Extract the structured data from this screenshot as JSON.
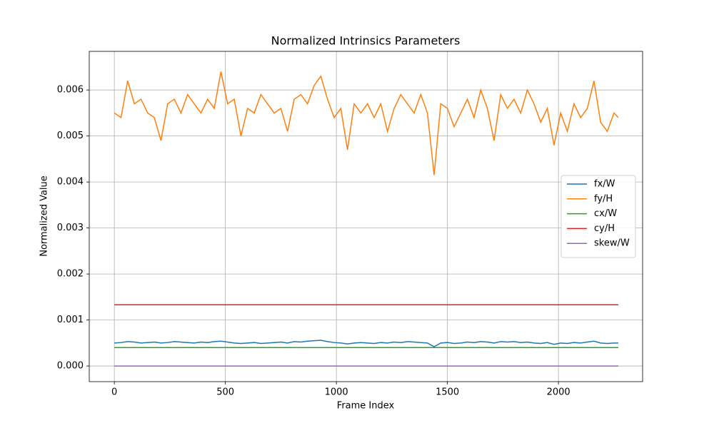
{
  "chart_data": {
    "type": "line",
    "title": "Normalized Intrinsics Parameters",
    "x_label": "Frame Index",
    "y_label": "Normalized Value",
    "xlim": [
      -113,
      2379
    ],
    "ylim": [
      -0.00034,
      0.00684
    ],
    "xticks": [
      0,
      500,
      1000,
      1500,
      2000
    ],
    "yticks": [
      {
        "value": 0,
        "label": "0.000"
      },
      {
        "value": 0.001,
        "label": "0.001"
      },
      {
        "value": 0.002,
        "label": "0.002"
      },
      {
        "value": 0.003,
        "label": "0.003"
      },
      {
        "value": 0.004,
        "label": "0.004"
      },
      {
        "value": 0.005,
        "label": "0.005"
      },
      {
        "value": 0.006,
        "label": "0.006"
      }
    ],
    "grid": true,
    "legend": "right",
    "x": [
      0,
      30,
      60,
      90,
      120,
      150,
      180,
      210,
      240,
      270,
      300,
      330,
      360,
      390,
      420,
      450,
      480,
      510,
      540,
      570,
      600,
      630,
      660,
      690,
      720,
      750,
      780,
      810,
      840,
      870,
      900,
      930,
      960,
      990,
      1020,
      1050,
      1080,
      1110,
      1140,
      1170,
      1200,
      1230,
      1260,
      1290,
      1320,
      1350,
      1380,
      1410,
      1440,
      1470,
      1500,
      1530,
      1560,
      1590,
      1620,
      1650,
      1680,
      1710,
      1740,
      1770,
      1800,
      1830,
      1860,
      1890,
      1920,
      1950,
      1980,
      2010,
      2040,
      2070,
      2100,
      2130,
      2160,
      2190,
      2220,
      2250,
      2270
    ],
    "series": [
      {
        "name": "fx/W",
        "color": "#1f77b4",
        "values": [
          0.0005,
          0.00051,
          0.00053,
          0.00052,
          0.0005,
          0.00051,
          0.00052,
          0.0005,
          0.00051,
          0.00053,
          0.00052,
          0.00051,
          0.0005,
          0.00052,
          0.00051,
          0.00053,
          0.00054,
          0.00052,
          0.0005,
          0.00049,
          0.0005,
          0.00051,
          0.00049,
          0.0005,
          0.00051,
          0.00052,
          0.0005,
          0.00053,
          0.00052,
          0.00054,
          0.00055,
          0.00056,
          0.00053,
          0.00051,
          0.0005,
          0.00048,
          0.0005,
          0.00051,
          0.0005,
          0.00049,
          0.00051,
          0.0005,
          0.00052,
          0.00051,
          0.00053,
          0.00052,
          0.00051,
          0.0005,
          0.00042,
          0.0005,
          0.00051,
          0.00049,
          0.0005,
          0.00052,
          0.00051,
          0.00053,
          0.00052,
          0.0005,
          0.00053,
          0.00052,
          0.00053,
          0.00051,
          0.00052,
          0.0005,
          0.00049,
          0.00051,
          0.00047,
          0.0005,
          0.00049,
          0.00051,
          0.0005,
          0.00052,
          0.00054,
          0.0005,
          0.00049,
          0.0005,
          0.0005
        ]
      },
      {
        "name": "fy/H",
        "color": "#ff7f0e",
        "values": [
          0.0055,
          0.0054,
          0.0062,
          0.0057,
          0.0058,
          0.0055,
          0.0054,
          0.0049,
          0.0057,
          0.0058,
          0.0055,
          0.0059,
          0.0057,
          0.0055,
          0.0058,
          0.0056,
          0.0064,
          0.0057,
          0.0058,
          0.005,
          0.0056,
          0.0055,
          0.0059,
          0.0057,
          0.0055,
          0.0056,
          0.0051,
          0.0058,
          0.0059,
          0.0057,
          0.0061,
          0.0063,
          0.0058,
          0.0054,
          0.0056,
          0.0047,
          0.0057,
          0.0055,
          0.0057,
          0.0054,
          0.0057,
          0.0051,
          0.0056,
          0.0059,
          0.0057,
          0.0055,
          0.0059,
          0.0055,
          0.00415,
          0.0057,
          0.0056,
          0.0052,
          0.0055,
          0.0058,
          0.0054,
          0.006,
          0.0056,
          0.0049,
          0.0059,
          0.0056,
          0.0058,
          0.0055,
          0.006,
          0.0057,
          0.0053,
          0.0056,
          0.0048,
          0.0055,
          0.0051,
          0.0057,
          0.0054,
          0.0056,
          0.0062,
          0.0053,
          0.0051,
          0.0055,
          0.0054
        ]
      },
      {
        "name": "cx/W",
        "color": "#2ca02c",
        "x": [
          0,
          2270
        ],
        "values": [
          0.0004,
          0.0004
        ]
      },
      {
        "name": "cy/H",
        "color": "#d62728",
        "x": [
          0,
          2270
        ],
        "values": [
          0.00133,
          0.00133
        ]
      },
      {
        "name": "skew/W",
        "color": "#9467bd",
        "x": [
          0,
          2270
        ],
        "values": [
          0,
          0
        ]
      }
    ]
  }
}
